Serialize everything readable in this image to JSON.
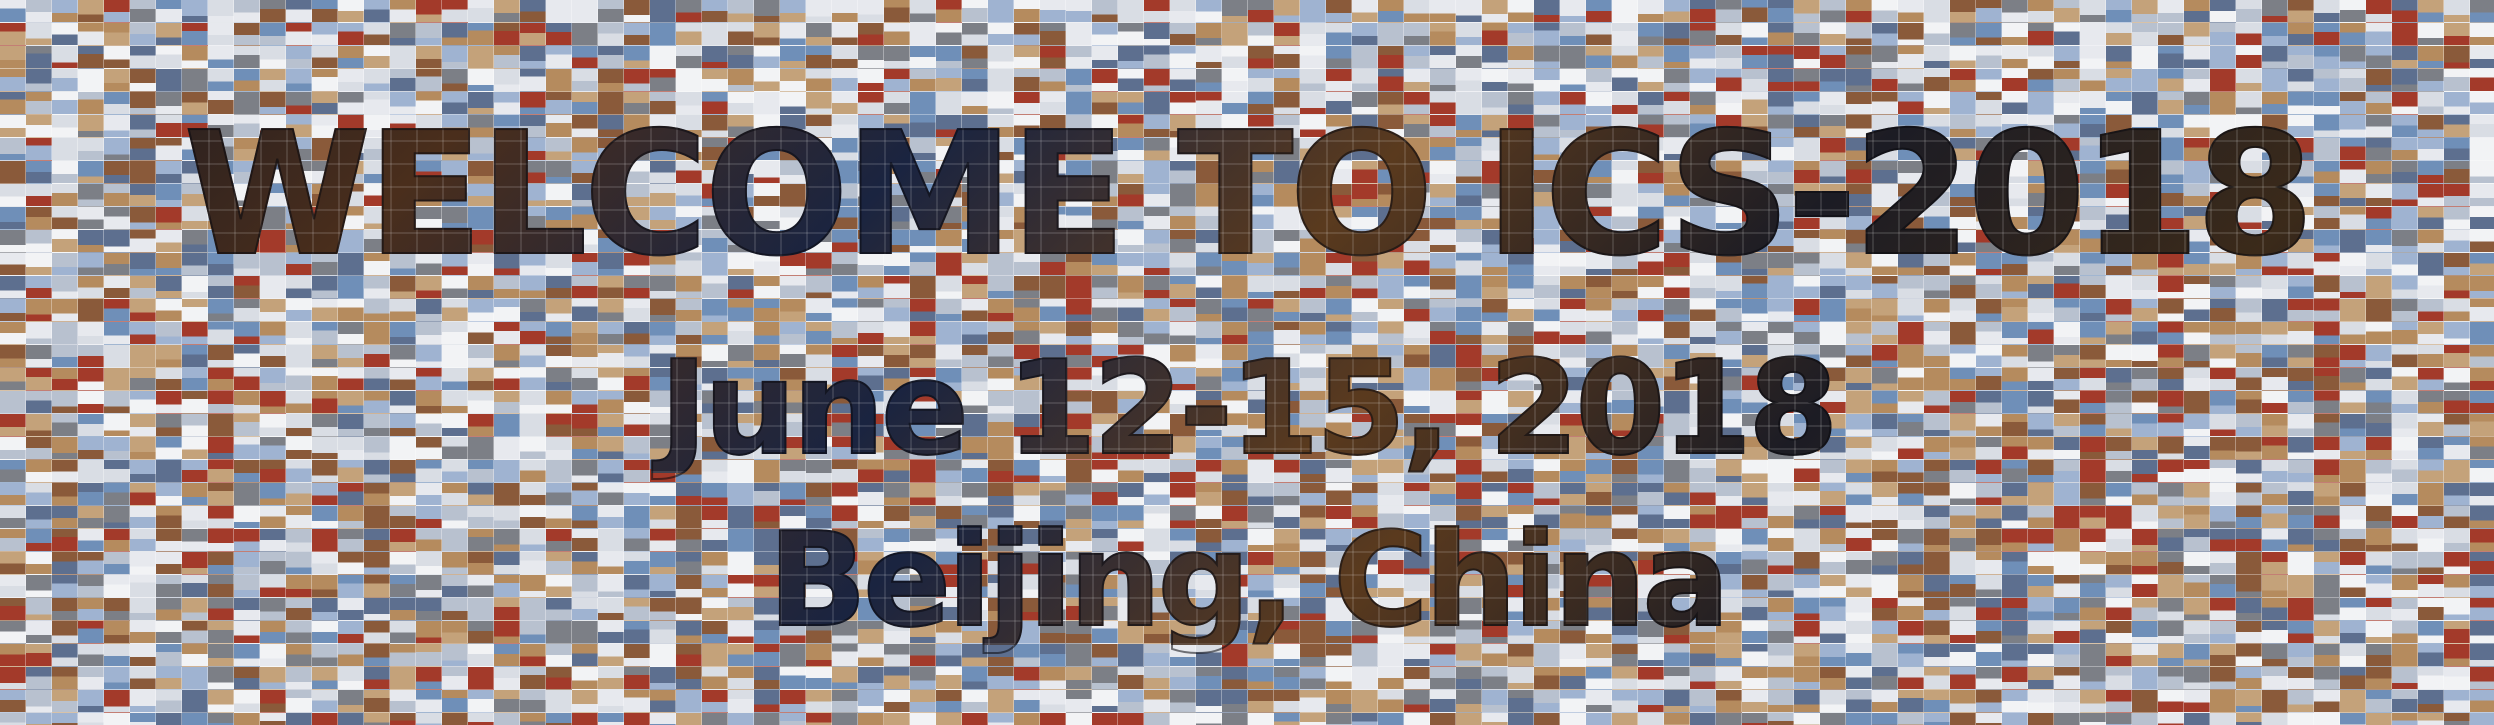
{
  "banner": {
    "line1": "WELCOME TO ICS-2018",
    "line2": "June 12-15, 2018",
    "line3": "Beijing, China"
  },
  "mosaic": {
    "palette": [
      "#9fb3d1",
      "#d9dde4",
      "#b8c1cf",
      "#8a5a3a",
      "#c4a27a",
      "#e7e9ee",
      "#6f8fb8",
      "#a33a2a",
      "#7c7f86",
      "#f2f3f5",
      "#b58b5e",
      "#5d6f8f"
    ]
  }
}
